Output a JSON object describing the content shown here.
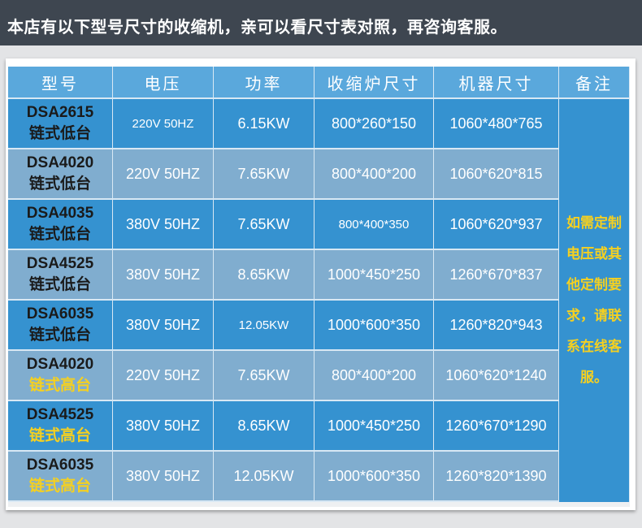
{
  "banner": "本店有以下型号尺寸的收缩机，亲可以看尺寸表对照，再咨询客服。",
  "headers": [
    "型号",
    "电压",
    "功率",
    "收缩炉尺寸",
    "机器尺寸",
    "备注"
  ],
  "rows": [
    {
      "model": "DSA2615",
      "type": "链式低台",
      "voltage": "220V 50HZ",
      "power": "6.15KW",
      "furnace": "800*260*150",
      "machine": "1060*480*765"
    },
    {
      "model": "DSA4020",
      "type": "链式低台",
      "voltage": "220V 50HZ",
      "power": "7.65KW",
      "furnace": "800*400*200",
      "machine": "1060*620*815"
    },
    {
      "model": "DSA4035",
      "type": "链式低台",
      "voltage": "380V 50HZ",
      "power": "7.65KW",
      "furnace": "800*400*350",
      "machine": "1060*620*937"
    },
    {
      "model": "DSA4525",
      "type": "链式低台",
      "voltage": "380V 50HZ",
      "power": "8.65KW",
      "furnace": "1000*450*250",
      "machine": "1260*670*837"
    },
    {
      "model": "DSA6035",
      "type": "链式低台",
      "voltage": "380V 50HZ",
      "power": "12.05KW",
      "furnace": "1000*600*350",
      "machine": "1260*820*943"
    },
    {
      "model": "DSA4020",
      "type": "链式高台",
      "voltage": "220V 50HZ",
      "power": "7.65KW",
      "furnace": "800*400*200",
      "machine": "1060*620*1240"
    },
    {
      "model": "DSA4525",
      "type": "链式高台",
      "voltage": "380V 50HZ",
      "power": "8.65KW",
      "furnace": "1000*450*250",
      "machine": "1260*670*1290"
    },
    {
      "model": "DSA6035",
      "type": "链式高台",
      "voltage": "380V 50HZ",
      "power": "12.05KW",
      "furnace": "1000*600*350",
      "machine": "1260*820*1390"
    }
  ],
  "remark": "如需定制电压或其他定制要求，请联系在线客服。",
  "colors": {
    "header": "#5aa8dc",
    "dark_row": "#3592d0",
    "light_row": "#80adcf",
    "highlight": "#f5d020"
  }
}
